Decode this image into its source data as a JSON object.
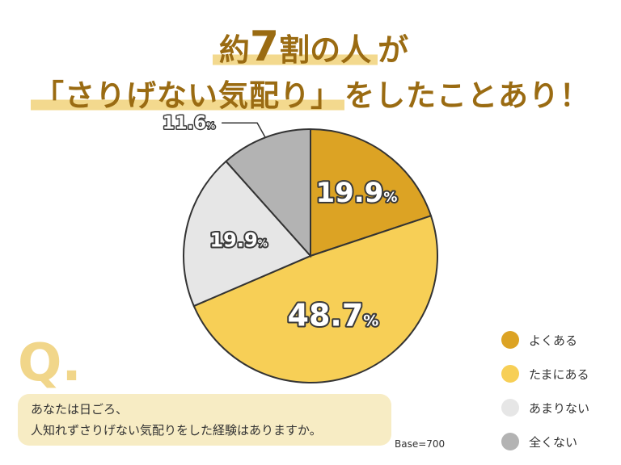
{
  "title": {
    "line1_prefix": "約",
    "line1_number": "7",
    "line1_suffix": "割の人",
    "line1_end": "が",
    "line2_highlight": "「さりげない気配り」",
    "line2_rest": "をしたことあり！"
  },
  "question": {
    "mark": "Q.",
    "line1": "あなたは日ごろ、",
    "line2": "人知れずさりげない気配りをした経験はありますか。"
  },
  "base_label": "Base=700",
  "colors": {
    "title": "#9a6b12",
    "slice_1": "#dca324",
    "slice_2": "#f7cf56",
    "slice_3": "#e6e6e6",
    "slice_4": "#b3b3b3"
  },
  "chart_data": {
    "type": "pie",
    "start": "top",
    "direction": "clockwise",
    "base": 700,
    "slices": [
      {
        "label": "よくある",
        "value": 19.9,
        "display": "19.9",
        "unit": "%"
      },
      {
        "label": "たまにある",
        "value": 48.7,
        "display": "48.7",
        "unit": "%"
      },
      {
        "label": "あまりない",
        "value": 19.9,
        "display": "19.9",
        "unit": "%"
      },
      {
        "label": "全くない",
        "value": 11.6,
        "display": "11.6",
        "unit": "%"
      }
    ],
    "legend_position": "bottom-right"
  }
}
